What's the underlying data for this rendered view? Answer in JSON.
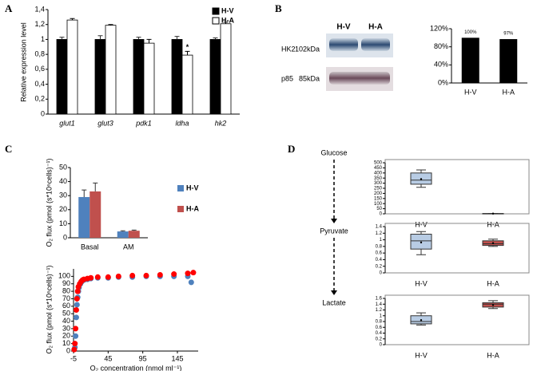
{
  "figure": {
    "panel_labels": [
      "A",
      "B",
      "C",
      "D"
    ],
    "blot": {
      "lanes": [
        "H-V",
        "H-A"
      ],
      "bands": [
        {
          "protein": "HK2",
          "size": "102kDa"
        },
        {
          "protein": "p85",
          "size": "85kDa"
        }
      ]
    }
  },
  "chart_data": [
    {
      "type": "bar",
      "ylabel": "Relative expression level",
      "categories": [
        "glut1",
        "glut3",
        "pdk1",
        "ldha",
        "hk2"
      ],
      "series": [
        {
          "name": "H-V",
          "color": "#000000",
          "values": [
            1,
            1,
            1,
            1,
            1
          ],
          "errors": [
            0.03,
            0.05,
            0.03,
            0.04,
            0.02
          ]
        },
        {
          "name": "H-A",
          "color": "#ffffff",
          "values": [
            1.26,
            1.19,
            0.95,
            0.79,
            1.21
          ],
          "errors": [
            0.02,
            0.01,
            0.05,
            0.05,
            0.02
          ]
        }
      ],
      "annotation": "*",
      "ylim": [
        0,
        1.4
      ],
      "yticks": [
        0,
        {
          "value": 0.2,
          "label": "0,2"
        },
        {
          "value": 0.4,
          "label": "0,4"
        },
        {
          "value": 0.6,
          "label": "0,6"
        },
        {
          "value": 0.8,
          "label": "0,8"
        },
        1,
        {
          "value": 1.2,
          "label": "1,2"
        },
        {
          "value": 1.4,
          "label": "1,4"
        }
      ],
      "legend": "top-right"
    },
    {
      "type": "bar",
      "categories": [
        "H-V",
        "H-A"
      ],
      "series": [
        {
          "color": "#000000",
          "values": [
            100,
            97
          ],
          "value_labels": [
            "100%",
            "97%"
          ]
        }
      ],
      "ylim": [
        0,
        120
      ],
      "yticks": [
        {
          "value": 0,
          "label": "0%"
        },
        {
          "value": 40,
          "label": "40%"
        },
        {
          "value": 80,
          "label": "80%"
        },
        {
          "value": 120,
          "label": "120%"
        }
      ]
    },
    {
      "type": "bar",
      "ylabel": "O₂ flux (pmol  (s*10⁶cells)⁻¹)",
      "categories": [
        "Basal",
        "AM"
      ],
      "series": [
        {
          "name": "H-V",
          "color": "#4f81bd",
          "values": [
            29,
            4.5
          ],
          "errors": [
            5,
            0.5
          ]
        },
        {
          "name": "H-A",
          "color": "#c0504d",
          "values": [
            33,
            5
          ],
          "errors": [
            6,
            0.5
          ]
        }
      ],
      "ylim": [
        0,
        50
      ],
      "yticks": [
        0,
        10,
        20,
        30,
        40,
        50
      ],
      "legend": "right"
    },
    {
      "type": "scatter",
      "ylabel": "O₂ flux (pmol  (s*10⁶cells)⁻¹)",
      "xlabel": "O₂ concentration (nmol ml⁻¹)",
      "series": [
        {
          "name": "H-V",
          "color": "#4f81bd",
          "x": [
            -3,
            -2,
            -1,
            0,
            1,
            2,
            3,
            5,
            7,
            10,
            15,
            20,
            30,
            45,
            60,
            80,
            100,
            120,
            140,
            160,
            165
          ],
          "values": [
            5,
            20,
            45,
            62,
            72,
            80,
            85,
            90,
            93,
            95,
            96,
            97,
            98,
            98,
            99,
            99,
            100,
            100,
            100,
            100,
            92
          ]
        },
        {
          "name": "H-A",
          "color": "#ff0000",
          "x": [
            -4,
            -3,
            -2,
            -1,
            0,
            1,
            2,
            4,
            6,
            8,
            10,
            15,
            20,
            30,
            45,
            60,
            80,
            100,
            120,
            140,
            160,
            168
          ],
          "values": [
            2,
            10,
            30,
            55,
            70,
            80,
            86,
            90,
            93,
            95,
            96,
            97,
            98,
            99,
            99,
            100,
            101,
            101,
            102,
            103,
            104,
            105
          ]
        }
      ],
      "xlim": [
        -5,
        175
      ],
      "xticks": [
        -5,
        45,
        95,
        145
      ],
      "ylim": [
        0,
        110
      ],
      "yticks": [
        0,
        10,
        20,
        30,
        40,
        50,
        60,
        70,
        80,
        90,
        100
      ]
    },
    {
      "type": "box",
      "title": "Glucose",
      "categories": [
        "H-V",
        "H-A"
      ],
      "colors": [
        "#b8cce4",
        "#c0504d"
      ],
      "boxes": [
        {
          "min": 260,
          "q1": 290,
          "median": 330,
          "q3": 400,
          "max": 430,
          "mean": 340
        },
        {
          "min": 1,
          "q1": 2,
          "median": 2,
          "q3": 3,
          "max": 4,
          "mean": 2
        }
      ],
      "ylim": [
        0,
        500
      ],
      "yticks": [
        0,
        50,
        100,
        150,
        200,
        250,
        300,
        350,
        400,
        450,
        500
      ]
    },
    {
      "type": "box",
      "title": "Pyruvate",
      "categories": [
        "H-V",
        "H-A"
      ],
      "colors": [
        "#b8cce4",
        "#c0504d"
      ],
      "boxes": [
        {
          "min": 0.55,
          "q1": 0.72,
          "median": 0.97,
          "q3": 1.17,
          "max": 1.25,
          "mean": 0.92
        },
        {
          "min": 0.8,
          "q1": 0.83,
          "median": 0.88,
          "q3": 0.97,
          "max": 1.02,
          "mean": 0.9
        }
      ],
      "ylim": [
        0,
        1.4
      ],
      "yticks": [
        0,
        0.2,
        0.4,
        0.6,
        0.8,
        1,
        1.2,
        1.4
      ]
    },
    {
      "type": "box",
      "title": "Lactate",
      "categories": [
        "H-V",
        "H-A"
      ],
      "colors": [
        "#b8cce4",
        "#c0504d"
      ],
      "boxes": [
        {
          "min": 0.68,
          "q1": 0.72,
          "median": 0.8,
          "q3": 1.0,
          "max": 1.1,
          "mean": 0.85
        },
        {
          "min": 1.25,
          "q1": 1.3,
          "median": 1.4,
          "q3": 1.45,
          "max": 1.52,
          "mean": 1.37
        }
      ],
      "ylim": [
        0,
        1.6
      ],
      "yticks": [
        0,
        0.2,
        0.4,
        0.6,
        0.8,
        1,
        1.2,
        1.4,
        1.6
      ]
    }
  ]
}
